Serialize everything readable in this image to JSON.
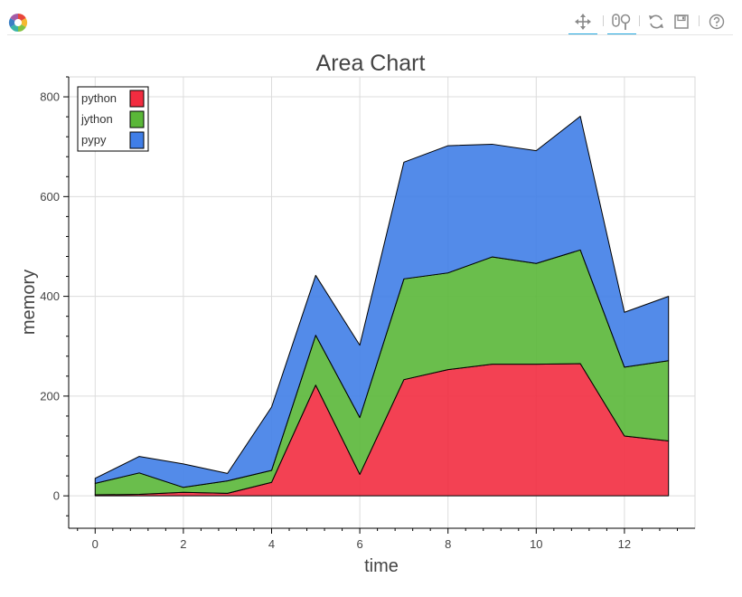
{
  "toolbar": {
    "logo_icon": "bokeh-logo-icon",
    "tools": [
      {
        "name": "pan-tool-button",
        "icon": "pan-icon",
        "active": true
      },
      {
        "name": "wheel-zoom-tool-button",
        "icon": "wheel-zoom-icon",
        "active": true
      },
      {
        "name": "reset-tool-button",
        "icon": "reset-icon",
        "active": false
      },
      {
        "name": "save-tool-button",
        "icon": "save-icon",
        "active": false
      },
      {
        "name": "help-tool-button",
        "icon": "help-icon",
        "active": false
      }
    ],
    "accent_color": "#26aae1"
  },
  "chart_data": {
    "type": "area",
    "stacked": true,
    "title": "Area Chart",
    "xlabel": "time",
    "ylabel": "memory",
    "xlim": [
      -0.6,
      13.6
    ],
    "ylim": [
      -65,
      840
    ],
    "x_ticks": [
      0,
      2,
      4,
      6,
      8,
      10,
      12
    ],
    "y_ticks": [
      0,
      200,
      400,
      600,
      800
    ],
    "grid": true,
    "legend_position": "top-left",
    "x": [
      0,
      1,
      2,
      3,
      4,
      5,
      6,
      7,
      8,
      9,
      10,
      11,
      12,
      13
    ],
    "series": [
      {
        "name": "python",
        "color": "#f22c40",
        "values": [
          2,
          3,
          7,
          5,
          27,
          222,
          43,
          233,
          253,
          264,
          264,
          265,
          120,
          110
        ]
      },
      {
        "name": "jython",
        "color": "#5ab738",
        "values": [
          23,
          43,
          10,
          25,
          24,
          100,
          114,
          202,
          194,
          215,
          202,
          228,
          138,
          161
        ]
      },
      {
        "name": "pypy",
        "color": "#407ee7",
        "values": [
          10,
          33,
          47,
          15,
          127,
          120,
          145,
          234,
          255,
          226,
          226,
          268,
          110,
          129
        ]
      }
    ]
  }
}
